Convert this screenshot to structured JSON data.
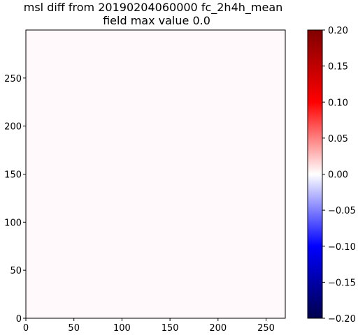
{
  "chart_data": {
    "type": "heatmap",
    "title": "msl diff from 20190204060000 fc_2h4h_mean",
    "subtitle": "field max value 0.0",
    "xlim": [
      0,
      270
    ],
    "ylim": [
      0,
      300
    ],
    "x_ticks": [
      0,
      50,
      100,
      150,
      200,
      250
    ],
    "y_ticks": [
      0,
      50,
      100,
      150,
      200,
      250
    ],
    "field_value": 0.0,
    "fill_color": "#fff9fb",
    "colorbar": {
      "colormap": "seismic",
      "range": [
        -0.2,
        0.2
      ],
      "ticks": [
        -0.2,
        -0.15,
        -0.1,
        -0.05,
        0.0,
        0.05,
        0.1,
        0.15,
        0.2
      ],
      "tick_labels": [
        "−0.20",
        "−0.15",
        "−0.10",
        "−0.05",
        "0.00",
        "0.05",
        "0.10",
        "0.15",
        "0.20"
      ]
    }
  }
}
